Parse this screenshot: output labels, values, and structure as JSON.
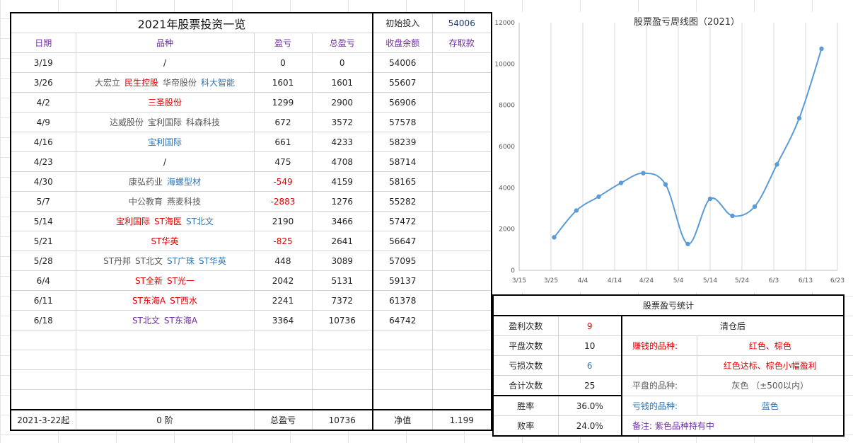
{
  "sheet": {
    "title": "2021年股票投资一览",
    "initial_label": "初始投入",
    "initial_value": "54006",
    "headers": [
      "日期",
      "品种",
      "盈亏",
      "总盈亏",
      "收盘余额",
      "存取款"
    ],
    "rows": [
      {
        "date": "3/19",
        "stocks": [
          {
            "n": "/",
            "c": "plain"
          }
        ],
        "pl": "0",
        "pl_neg": false,
        "total": "0",
        "balance": "54006"
      },
      {
        "date": "3/26",
        "stocks": [
          {
            "n": "大宏立",
            "c": "gray"
          },
          {
            "n": "民生控股",
            "c": "red"
          },
          {
            "n": "华帝股份",
            "c": "gray"
          },
          {
            "n": "科大智能",
            "c": "blue"
          }
        ],
        "pl": "1601",
        "pl_neg": false,
        "total": "1601",
        "balance": "55607"
      },
      {
        "date": "4/2",
        "stocks": [
          {
            "n": "三圣股份",
            "c": "red"
          }
        ],
        "pl": "1299",
        "pl_neg": false,
        "total": "2900",
        "balance": "56906"
      },
      {
        "date": "4/9",
        "stocks": [
          {
            "n": "达威股份",
            "c": "gray"
          },
          {
            "n": "宝利国际",
            "c": "gray"
          },
          {
            "n": "科森科技",
            "c": "gray"
          }
        ],
        "pl": "672",
        "pl_neg": false,
        "total": "3572",
        "balance": "57578"
      },
      {
        "date": "4/16",
        "stocks": [
          {
            "n": "宝利国际",
            "c": "blue"
          }
        ],
        "pl": "661",
        "pl_neg": false,
        "total": "4233",
        "balance": "58239"
      },
      {
        "date": "4/23",
        "stocks": [
          {
            "n": "/",
            "c": "plain"
          }
        ],
        "pl": "475",
        "pl_neg": false,
        "total": "4708",
        "balance": "58714"
      },
      {
        "date": "4/30",
        "stocks": [
          {
            "n": "康弘药业",
            "c": "gray"
          },
          {
            "n": "海螺型材",
            "c": "blue"
          }
        ],
        "pl": "-549",
        "pl_neg": true,
        "total": "4159",
        "balance": "58165"
      },
      {
        "date": "5/7",
        "stocks": [
          {
            "n": "中公教育",
            "c": "gray"
          },
          {
            "n": "燕麦科技",
            "c": "gray"
          }
        ],
        "pl": "-2883",
        "pl_neg": true,
        "total": "1276",
        "balance": "55282"
      },
      {
        "date": "5/14",
        "stocks": [
          {
            "n": "宝利国际",
            "c": "red"
          },
          {
            "n": "ST海医",
            "c": "red"
          },
          {
            "n": "ST北文",
            "c": "blue"
          }
        ],
        "pl": "2190",
        "pl_neg": false,
        "total": "3466",
        "balance": "57472"
      },
      {
        "date": "5/21",
        "stocks": [
          {
            "n": "ST华英",
            "c": "red"
          }
        ],
        "pl": "-825",
        "pl_neg": true,
        "total": "2641",
        "balance": "56647"
      },
      {
        "date": "5/28",
        "stocks": [
          {
            "n": "ST丹邦",
            "c": "gray"
          },
          {
            "n": "ST北文",
            "c": "gray"
          },
          {
            "n": "ST广珠",
            "c": "blue"
          },
          {
            "n": "ST华英",
            "c": "blue"
          }
        ],
        "pl": "448",
        "pl_neg": false,
        "total": "3089",
        "balance": "57095"
      },
      {
        "date": "6/4",
        "stocks": [
          {
            "n": "ST全新",
            "c": "red"
          },
          {
            "n": "ST光一",
            "c": "red"
          }
        ],
        "pl": "2042",
        "pl_neg": false,
        "total": "5131",
        "balance": "59137"
      },
      {
        "date": "6/11",
        "stocks": [
          {
            "n": "ST东海A",
            "c": "red"
          },
          {
            "n": "ST西水",
            "c": "red"
          }
        ],
        "pl": "2241",
        "pl_neg": false,
        "total": "7372",
        "balance": "61378"
      },
      {
        "date": "6/18",
        "stocks": [
          {
            "n": "ST北文",
            "c": "purple"
          },
          {
            "n": "ST东海A",
            "c": "purple"
          }
        ],
        "pl": "3364",
        "pl_neg": false,
        "total": "10736",
        "balance": "64742"
      }
    ],
    "footer": {
      "start": "2021-3-22起",
      "stage": "0 阶",
      "total_label": "总盈亏",
      "total_value": "10736",
      "nav_label": "净值",
      "nav_value": "1.199"
    }
  },
  "stats": {
    "title": "股票盈亏统计",
    "rows": [
      {
        "label": "盈利次数",
        "value": "9"
      },
      {
        "label": "平盘次数",
        "value": "10"
      },
      {
        "label": "亏损次数",
        "value": "6"
      },
      {
        "label": "合计次数",
        "value": "25"
      },
      {
        "label": "胜率",
        "value": "36.0%"
      },
      {
        "label": "败率",
        "value": "24.0%"
      }
    ],
    "cleared_title": "清仓后",
    "profit_label": "赚钱的品种:",
    "profit_value": "红色、棕色",
    "profit_value2": "红色达标、棕色小幅盈利",
    "flat_label": "平盘的品种:",
    "flat_value": "灰色 （±500以内）",
    "loss_label": "亏钱的品种:",
    "loss_value": "蓝色",
    "note": "备注: 紫色品种持有中"
  },
  "colors": {
    "red": "#e00000",
    "gray": "#595959",
    "blue": "#2e75b6",
    "purple": "#7030a0",
    "line": "#5b9bd5"
  },
  "chart_data": {
    "type": "line",
    "title": "股票盈亏周线图（2021）",
    "xlabel": "",
    "ylabel": "",
    "x_ticks": [
      "3/15",
      "3/25",
      "4/4",
      "4/14",
      "4/24",
      "5/4",
      "5/14",
      "5/24",
      "6/3",
      "6/13",
      "6/23"
    ],
    "y_ticks": [
      "0",
      "2000",
      "4000",
      "6000",
      "8000",
      "10000",
      "12000"
    ],
    "xlim": [
      "2021-03-15",
      "2021-06-23"
    ],
    "ylim": [
      0,
      12000
    ],
    "grid": true,
    "smooth": true,
    "series": [
      {
        "x": [
          "2021-03-26",
          "2021-04-02",
          "2021-04-09",
          "2021-04-16",
          "2021-04-23",
          "2021-04-30",
          "2021-05-07",
          "2021-05-14",
          "2021-05-21",
          "2021-05-28",
          "2021-06-04",
          "2021-06-11",
          "2021-06-18"
        ],
        "values": [
          1601,
          2900,
          3572,
          4233,
          4708,
          4159,
          1276,
          3466,
          2641,
          3089,
          5131,
          7372,
          10736
        ]
      }
    ]
  }
}
